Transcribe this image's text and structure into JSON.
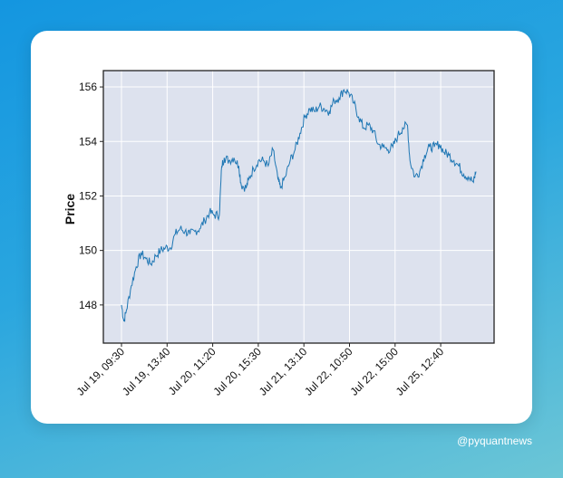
{
  "chart_data": {
    "type": "line",
    "title": "",
    "xlabel": "",
    "ylabel": "Price",
    "ylim": [
      146.6,
      156.6
    ],
    "grid": true,
    "x_ticks": [
      "Jul 19, 09:30",
      "Jul 19, 13:40",
      "Jul 20, 11:20",
      "Jul 20, 15:30",
      "Jul 21, 13:10",
      "Jul 22, 10:50",
      "Jul 22, 15:00",
      "Jul 25, 12:40"
    ],
    "y_ticks": [
      148,
      150,
      152,
      154,
      156
    ],
    "series": [
      {
        "color": "#1f77b4",
        "values": [
          [
            0,
            148.0
          ],
          [
            1,
            147.4
          ],
          [
            2,
            147.8
          ],
          [
            4,
            148.7
          ],
          [
            6,
            149.4
          ],
          [
            8,
            149.9
          ],
          [
            10,
            149.7
          ],
          [
            12,
            149.5
          ],
          [
            14,
            149.8
          ],
          [
            16,
            150.0
          ],
          [
            18,
            150.1
          ],
          [
            20,
            150.1
          ],
          [
            22,
            150.6
          ],
          [
            24,
            150.8
          ],
          [
            26,
            150.7
          ],
          [
            28,
            150.6
          ],
          [
            30,
            150.7
          ],
          [
            32,
            150.8
          ],
          [
            34,
            151.1
          ],
          [
            36,
            151.4
          ],
          [
            38,
            151.3
          ],
          [
            40,
            151.3
          ],
          [
            41,
            153.1
          ],
          [
            42,
            153.4
          ],
          [
            44,
            153.3
          ],
          [
            46,
            153.4
          ],
          [
            48,
            153.1
          ],
          [
            49,
            152.4
          ],
          [
            51,
            152.3
          ],
          [
            52,
            152.6
          ],
          [
            54,
            153.0
          ],
          [
            56,
            153.3
          ],
          [
            58,
            153.3
          ],
          [
            60,
            153.1
          ],
          [
            62,
            153.7
          ],
          [
            64,
            152.6
          ],
          [
            65,
            152.3
          ],
          [
            67,
            152.7
          ],
          [
            69,
            153.3
          ],
          [
            71,
            153.7
          ],
          [
            73,
            154.3
          ],
          [
            75,
            154.9
          ],
          [
            77,
            155.2
          ],
          [
            79,
            155.1
          ],
          [
            81,
            155.3
          ],
          [
            83,
            155.2
          ],
          [
            85,
            155.1
          ],
          [
            87,
            155.5
          ],
          [
            89,
            155.6
          ],
          [
            91,
            155.9
          ],
          [
            93,
            155.8
          ],
          [
            95,
            155.4
          ],
          [
            97,
            154.9
          ],
          [
            99,
            154.5
          ],
          [
            101,
            154.6
          ],
          [
            103,
            154.4
          ],
          [
            105,
            153.9
          ],
          [
            107,
            153.8
          ],
          [
            109,
            153.7
          ],
          [
            111,
            153.8
          ],
          [
            113,
            154.2
          ],
          [
            115,
            154.5
          ],
          [
            117,
            154.6
          ],
          [
            118,
            153.3
          ],
          [
            120,
            152.7
          ],
          [
            122,
            152.9
          ],
          [
            124,
            153.5
          ],
          [
            126,
            153.8
          ],
          [
            128,
            153.8
          ],
          [
            130,
            153.9
          ],
          [
            132,
            153.6
          ],
          [
            134,
            153.5
          ],
          [
            136,
            153.3
          ],
          [
            138,
            153.1
          ],
          [
            140,
            152.8
          ],
          [
            142,
            152.7
          ],
          [
            144,
            152.5
          ],
          [
            145,
            152.9
          ]
        ]
      }
    ]
  },
  "watermark": "@pyquantnews"
}
